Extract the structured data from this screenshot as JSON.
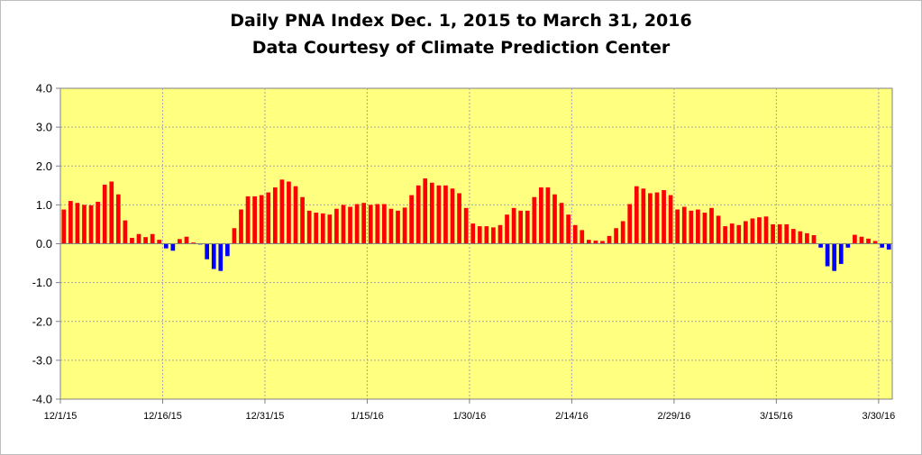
{
  "chart_data": {
    "type": "bar",
    "title": "Daily PNA Index Dec. 1, 2015 to March 31, 2016",
    "subtitle": "Data Courtesy of Climate Prediction Center",
    "xlabel": "",
    "ylabel": "",
    "ylim": [
      -4.0,
      4.0
    ],
    "yticks": [
      "4.0",
      "3.0",
      "2.0",
      "1.0",
      "0.0",
      "-1.0",
      "-2.0",
      "-3.0",
      "-4.0"
    ],
    "ytick_values": [
      4,
      3,
      2,
      1,
      0,
      -1,
      -2,
      -3,
      -4
    ],
    "xtick_labels": [
      "12/1/15",
      "12/16/15",
      "12/31/15",
      "1/15/16",
      "1/30/16",
      "2/14/16",
      "2/29/16",
      "3/15/16",
      "3/30/16"
    ],
    "xtick_day_index": [
      0,
      15,
      30,
      45,
      60,
      75,
      90,
      105,
      120
    ],
    "grid": true,
    "plot_background": "#ffff80",
    "positive_color": "#ff0000",
    "negative_color": "#0000ff",
    "start_date": "2015-12-01",
    "end_date": "2016-03-31",
    "values": [
      0.88,
      1.1,
      1.05,
      1.0,
      0.99,
      1.08,
      1.52,
      1.6,
      1.27,
      0.6,
      0.15,
      0.25,
      0.17,
      0.25,
      0.1,
      -0.12,
      -0.18,
      0.12,
      0.18,
      0.03,
      -0.02,
      -0.4,
      -0.65,
      -0.7,
      -0.32,
      0.4,
      0.88,
      1.22,
      1.22,
      1.25,
      1.32,
      1.45,
      1.65,
      1.6,
      1.48,
      1.2,
      0.85,
      0.8,
      0.78,
      0.75,
      0.9,
      1.0,
      0.95,
      1.02,
      1.05,
      1.0,
      1.02,
      1.02,
      0.9,
      0.85,
      0.93,
      1.25,
      1.5,
      1.68,
      1.57,
      1.5,
      1.5,
      1.42,
      1.3,
      0.92,
      0.52,
      0.45,
      0.45,
      0.42,
      0.48,
      0.75,
      0.92,
      0.85,
      0.85,
      1.2,
      1.45,
      1.45,
      1.27,
      1.05,
      0.75,
      0.48,
      0.35,
      0.1,
      0.08,
      0.07,
      0.2,
      0.4,
      0.58,
      1.02,
      1.48,
      1.42,
      1.3,
      1.32,
      1.38,
      1.25,
      0.88,
      0.95,
      0.85,
      0.88,
      0.8,
      0.92,
      0.72,
      0.45,
      0.52,
      0.48,
      0.58,
      0.65,
      0.68,
      0.7,
      0.5,
      0.5,
      0.5,
      0.38,
      0.32,
      0.27,
      0.22,
      -0.1,
      -0.58,
      -0.7,
      -0.52,
      -0.1,
      0.23,
      0.18,
      0.13,
      0.07,
      -0.1,
      -0.15
    ]
  }
}
